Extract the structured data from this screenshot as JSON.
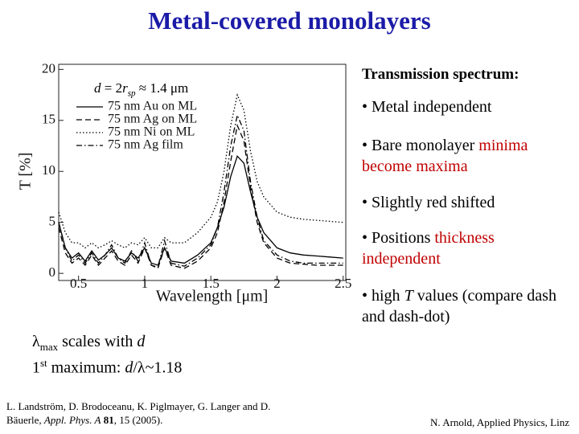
{
  "title": "Metal-covered monolayers",
  "chart_data": {
    "type": "line",
    "annotation": [
      {
        "text": "d",
        "italic": true
      },
      {
        "text": " = 2"
      },
      {
        "text": "r",
        "italic": true
      },
      {
        "text": "sp",
        "sub": true,
        "italic": true
      },
      {
        "text": " ≈ 1.4 μm"
      }
    ],
    "x_label": "Wavelength [μm]",
    "y_label": "T [%]",
    "xlim": [
      0.35,
      2.52
    ],
    "ylim": [
      -0.7,
      20.5
    ],
    "xticks": [
      0.5,
      1,
      1.5,
      2,
      2.5
    ],
    "yticks": [
      0,
      5,
      10,
      15,
      20
    ],
    "x": [
      0.35,
      0.4,
      0.45,
      0.5,
      0.55,
      0.6,
      0.65,
      0.7,
      0.75,
      0.8,
      0.85,
      0.9,
      0.95,
      1.0,
      1.05,
      1.1,
      1.15,
      1.2,
      1.3,
      1.4,
      1.5,
      1.55,
      1.6,
      1.65,
      1.7,
      1.75,
      1.8,
      1.85,
      1.9,
      2.0,
      2.1,
      2.2,
      2.3,
      2.4,
      2.5
    ],
    "series": [
      {
        "name": "75 nm Au on ML",
        "color": "#000000",
        "dash": "solid",
        "values": [
          5,
          2.5,
          1.5,
          2,
          1.2,
          2.2,
          1.3,
          1.8,
          2.5,
          1.5,
          1.2,
          2,
          1.5,
          2.5,
          1,
          0.8,
          2.5,
          1.2,
          1,
          1.8,
          3,
          4.5,
          6.5,
          9.5,
          11.5,
          10.8,
          8,
          5.5,
          4,
          2.5,
          2,
          1.8,
          1.7,
          1.6,
          1.5
        ]
      },
      {
        "name": "75 nm Ag on ML",
        "color": "#000000",
        "dash": "dashed",
        "values": [
          4.5,
          2,
          1,
          1.5,
          0.8,
          1.8,
          0.8,
          1.5,
          2.2,
          1.2,
          0.8,
          1.8,
          1,
          2.5,
          0.8,
          0.5,
          2.5,
          0.8,
          0.5,
          1.2,
          2.5,
          4,
          7,
          11,
          14.5,
          13,
          8.5,
          5,
          3,
          1.5,
          1,
          0.9,
          0.8,
          0.8,
          0.8
        ]
      },
      {
        "name": "75 nm Ni on ML",
        "color": "#000000",
        "dash": "dotted",
        "values": [
          6,
          4,
          3,
          3,
          2.5,
          3,
          2.5,
          2.8,
          3.2,
          2.8,
          2.5,
          3,
          2.8,
          3.5,
          2.5,
          2.5,
          3.5,
          3,
          3,
          4,
          5.5,
          7,
          10,
          14.5,
          17.5,
          16,
          12,
          9,
          7.5,
          6,
          5.5,
          5.3,
          5.2,
          5.1,
          5
        ]
      },
      {
        "name": "75 nm Ag film",
        "color": "#000000",
        "dash": "dashdot",
        "values": [
          5,
          2.5,
          1.2,
          1.8,
          1,
          2,
          1,
          1.8,
          2.8,
          1.5,
          1,
          2.2,
          1.2,
          3,
          0.8,
          0.6,
          3.2,
          1,
          0.7,
          1.5,
          2.8,
          4.5,
          8,
          12.5,
          15.5,
          14,
          9,
          5.5,
          3.2,
          1.8,
          1.2,
          1,
          1,
          1,
          1
        ]
      }
    ]
  },
  "right_text": {
    "heading": "Transmission spectrum:",
    "bullets": [
      [
        {
          "text": "• Metal independent"
        }
      ],
      [
        {
          "text": "• Bare monolayer "
        },
        {
          "text": "minima become maxima",
          "color": "#c00000"
        }
      ],
      [
        {
          "text": "• Slightly red shifted"
        }
      ],
      [
        {
          "text": "• Positions "
        },
        {
          "text": "thickness independent",
          "color": "#c00000"
        }
      ],
      [
        {
          "text": "• high "
        },
        {
          "text": "T",
          "italic": true
        },
        {
          "text": " values (compare dash and dash-dot)"
        }
      ]
    ]
  },
  "left_text": [
    [
      {
        "text": "λ"
      },
      {
        "text": "max",
        "sub": true
      },
      {
        "text": " scales with "
      },
      {
        "text": "d",
        "italic": true
      }
    ],
    [
      {
        "text": "1"
      },
      {
        "text": "st",
        "sup": true
      },
      {
        "text": " maximum: "
      },
      {
        "text": "d",
        "italic": true
      },
      {
        "text": "/λ~1.18"
      }
    ]
  ],
  "reference": [
    {
      "text": "L. Landström, D. Brodoceanu, K. Piglmayer, G. Langer and D. Bäuerle, "
    },
    {
      "text": "Appl. Phys. A",
      "italic": true
    },
    {
      "text": " 81",
      "bold": true
    },
    {
      "text": ", 15 (2005)."
    }
  ],
  "footer": "N. Arnold, Applied Physics, Linz"
}
